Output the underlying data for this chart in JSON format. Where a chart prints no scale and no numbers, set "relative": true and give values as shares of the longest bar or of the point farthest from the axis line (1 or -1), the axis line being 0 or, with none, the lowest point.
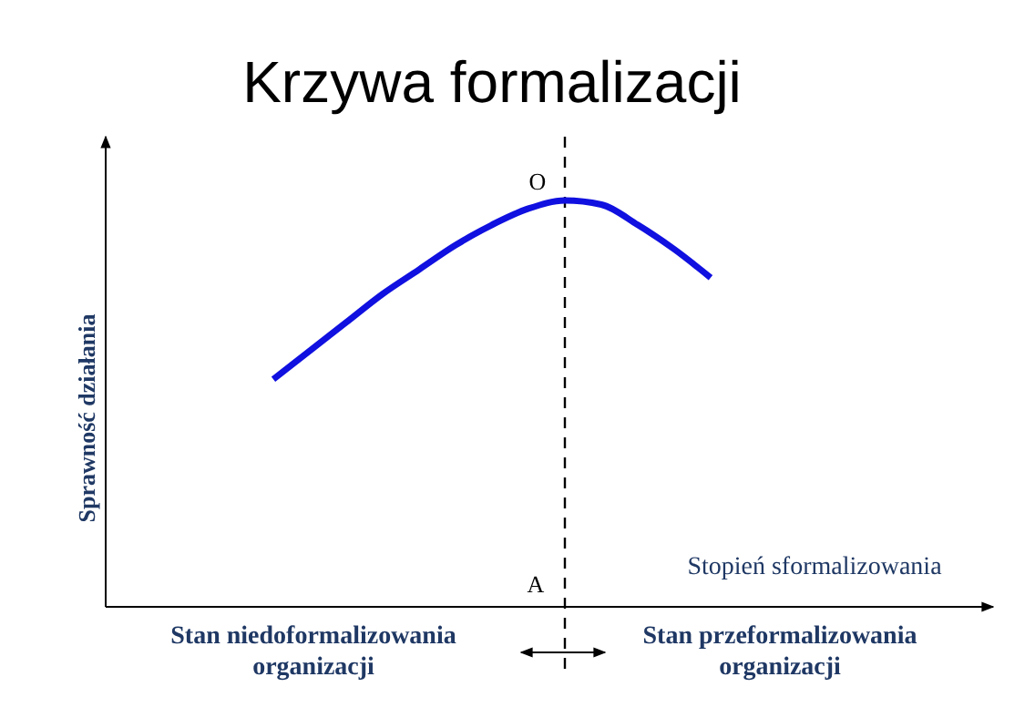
{
  "chart_data": {
    "type": "line",
    "title": "Krzywa formalizacji",
    "xlabel": "Stopień sformalizowania",
    "relative": true,
    "categories": [
      null,
      null,
      null,
      null,
      null,
      null,
      null,
      null,
      null,
      null,
      null,
      null,
      null
    ],
    "series": [
      {
        "color": "#1010e0",
        "values": [
          0.56,
          0.63,
          0.7,
          0.77,
          0.83,
          0.89,
          0.94,
          0.98,
          1.0,
          0.99,
          0.94,
          0.88,
          0.81
        ]
      }
    ],
    "annotations": [
      "O",
      "A",
      "Stan niedoformalizowania organizacji",
      "Stan przeformalizowania organizacji",
      "Sprawność działania"
    ],
    "marker": "none",
    "line_style": "solid"
  }
}
